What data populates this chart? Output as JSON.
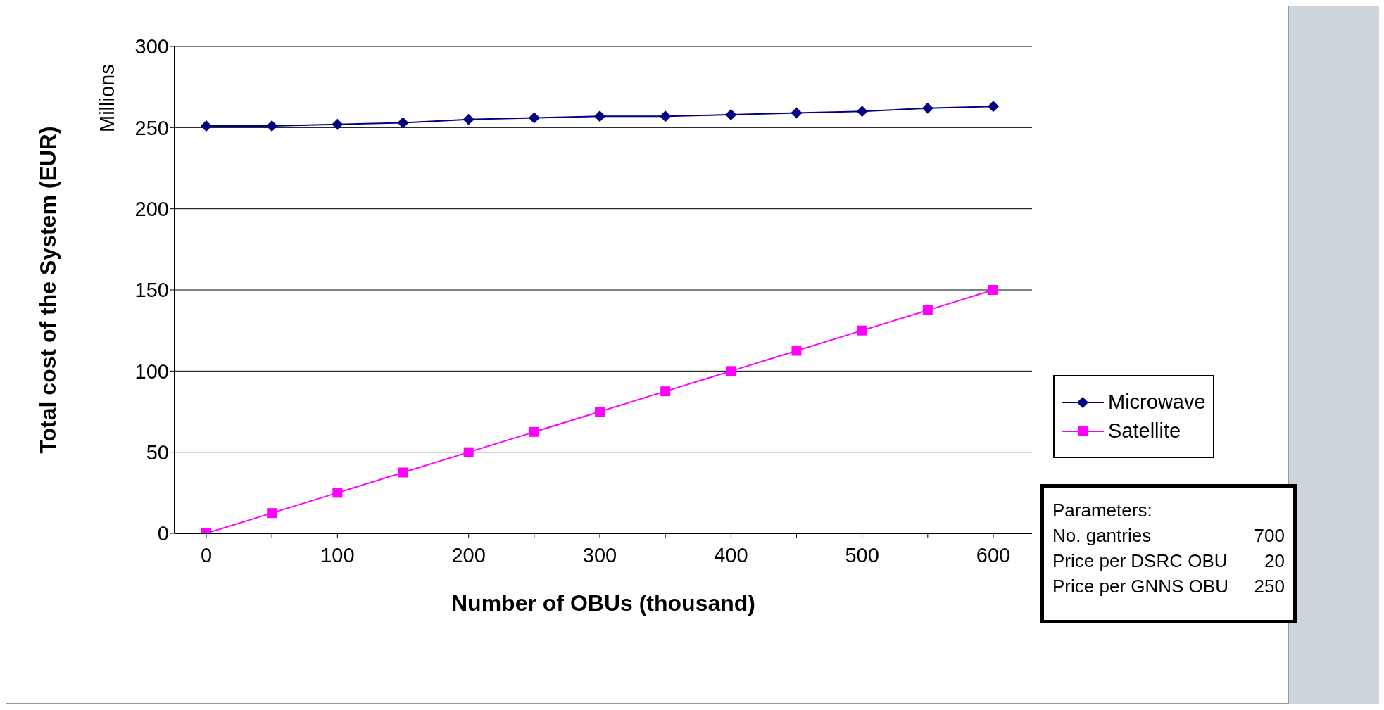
{
  "chart_data": {
    "type": "line",
    "xlabel": "Number of OBUs (thousand)",
    "ylabel": "Total cost of the System (EUR)",
    "categories": [
      "0",
      null,
      "100",
      null,
      "200",
      null,
      "300",
      null,
      "400",
      null,
      "500",
      null,
      "600"
    ],
    "series": [
      {
        "name": "Microwave",
        "color": "#000080",
        "marker": "diamond",
        "values": [
          251,
          251,
          252,
          253,
          255,
          256,
          257,
          257,
          258,
          259,
          260,
          262,
          263
        ]
      },
      {
        "name": "Satellite",
        "color": "#ff00ff",
        "marker": "square",
        "values": [
          0,
          12.5,
          25,
          37.5,
          50,
          62.5,
          75,
          87.5,
          100,
          112.5,
          125,
          137.5,
          150
        ]
      }
    ],
    "ylim": [
      0,
      300
    ],
    "yticks": [
      0,
      50,
      100,
      150,
      200,
      250,
      300
    ],
    "grid": "y",
    "legend": "right",
    "annotations": [
      "Millions",
      "Parameters:",
      "No. gantries 700",
      "Price per DSRC OBU 20",
      "Price per GNNS OBU 250"
    ]
  }
}
